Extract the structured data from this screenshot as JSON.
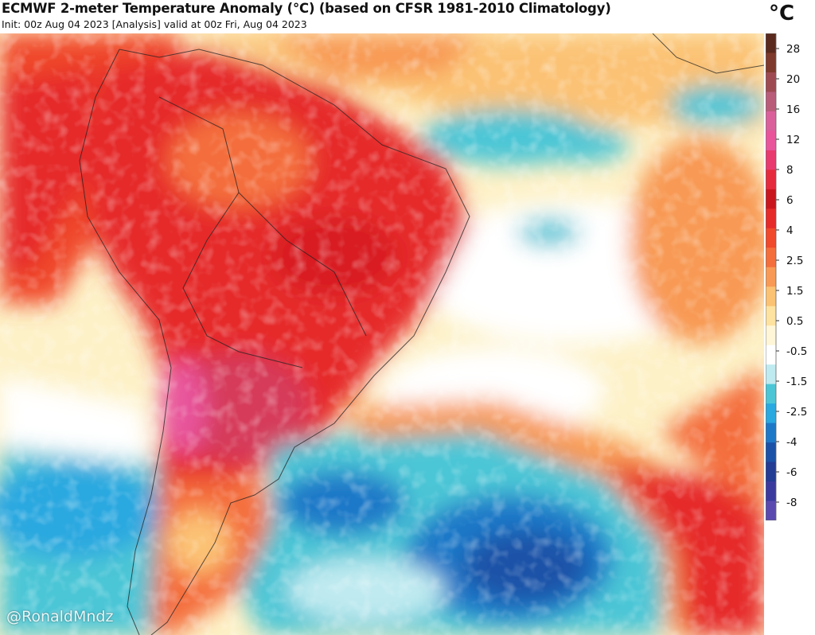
{
  "header": {
    "title": "ECMWF 2-meter Temperature Anomaly (°C) (based on CFSR 1981-2010 Climatology)",
    "subtitle": "Init: 00z Aug 04 2023   [Analysis]   valid at 00z Fri, Aug 04 2023"
  },
  "legend": {
    "unit": "°C",
    "bands": [
      {
        "color": "#5b2a1e"
      },
      {
        "color": "#7e3a2c"
      },
      {
        "color": "#9e4a52"
      },
      {
        "color": "#b85c7a"
      },
      {
        "color": "#d9609a"
      },
      {
        "color": "#e8559b"
      },
      {
        "color": "#e83a6e"
      },
      {
        "color": "#e62a3e"
      },
      {
        "color": "#c9161e"
      },
      {
        "color": "#e62a2a"
      },
      {
        "color": "#f0492c"
      },
      {
        "color": "#f46e3c"
      },
      {
        "color": "#f89a55"
      },
      {
        "color": "#fbc274"
      },
      {
        "color": "#fde2a0"
      },
      {
        "color": "#fff6d8"
      },
      {
        "color": "#ffffff"
      },
      {
        "color": "#bfeaf0"
      },
      {
        "color": "#4cc6d6"
      },
      {
        "color": "#2aa8e0"
      },
      {
        "color": "#1e78c8"
      },
      {
        "color": "#1b52a8"
      },
      {
        "color": "#233c94"
      },
      {
        "color": "#3a3a9e"
      },
      {
        "color": "#5a4ab0"
      }
    ],
    "ticks": [
      "28",
      "20",
      "16",
      "12",
      "8",
      "6",
      "4",
      "2.5",
      "1.5",
      "0.5",
      "-0.5",
      "-1.5",
      "-2.5",
      "-4",
      "-6",
      "-8"
    ]
  },
  "credit": "@RonaldMndz"
}
